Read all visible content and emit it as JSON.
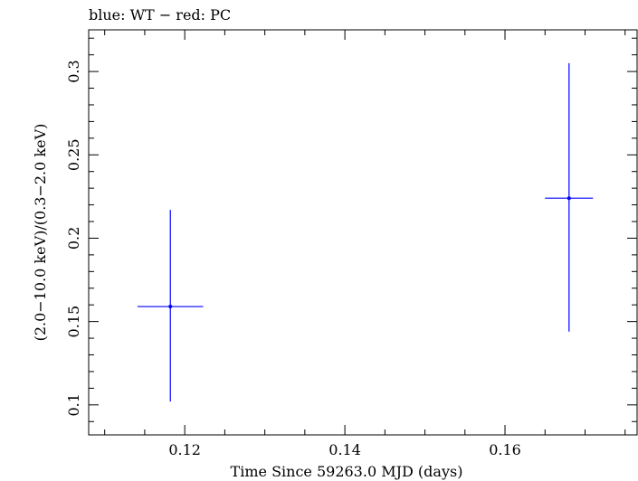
{
  "chart_data": {
    "type": "scatter",
    "title": "blue: WT − red: PC",
    "xlabel": "Time Since 59263.0 MJD (days)",
    "ylabel": "(2.0−10.0 keV)/(0.3−2.0 keV)",
    "xlim": [
      0.108,
      0.1765
    ],
    "ylim": [
      0.082,
      0.325
    ],
    "xticks": [
      0.12,
      0.14,
      0.16
    ],
    "xtick_labels": [
      "0.12",
      "0.14",
      "0.16"
    ],
    "yticks": [
      0.1,
      0.15,
      0.2,
      0.25,
      0.3
    ],
    "ytick_labels": [
      "0.1",
      "0.15",
      "0.2",
      "0.25",
      "0.3"
    ],
    "grid": false,
    "series": [
      {
        "mode": "WT",
        "color": "#0000ff",
        "points": [
          {
            "x": 0.1182,
            "y": 0.159,
            "xerr": 0.0041,
            "yerr_low": 0.057,
            "yerr_high": 0.058
          },
          {
            "x": 0.168,
            "y": 0.224,
            "xerr": 0.003,
            "yerr_low": 0.08,
            "yerr_high": 0.081
          }
        ]
      }
    ]
  }
}
